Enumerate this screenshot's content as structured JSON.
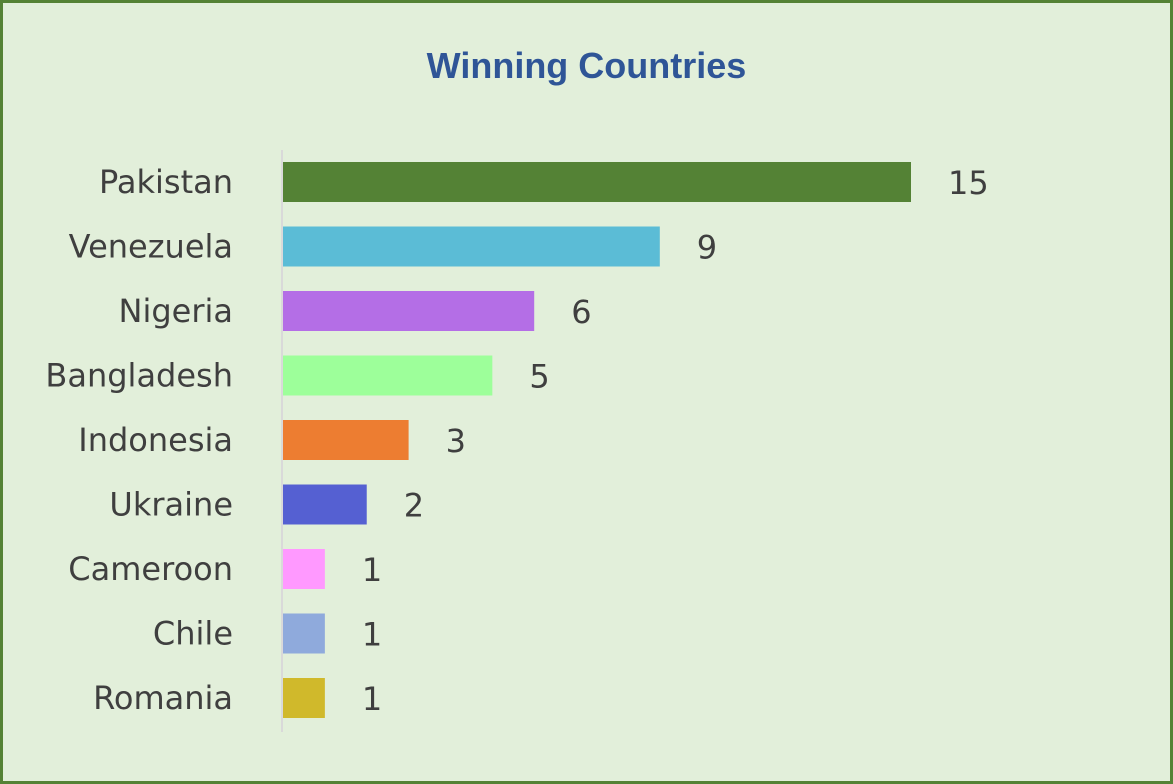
{
  "chart_data": {
    "type": "bar",
    "orientation": "horizontal",
    "title": "Winning Countries",
    "xlabel": "",
    "ylabel": "",
    "categories": [
      "Pakistan",
      "Venezuela",
      "Nigeria",
      "Bangladesh",
      "Indonesia",
      "Ukraine",
      "Cameroon",
      "Chile",
      "Romania"
    ],
    "values": [
      15,
      9,
      6,
      5,
      3,
      2,
      1,
      1,
      1
    ],
    "colors": [
      "#548235",
      "#5bbcd6",
      "#b46ee6",
      "#9dff9a",
      "#ed7d31",
      "#5560d2",
      "#ff99ff",
      "#8faadc",
      "#d0b92b"
    ],
    "xlim": [
      0,
      15
    ],
    "grid": false,
    "legend": "none",
    "data_labels": true
  },
  "colors": {
    "background": "#e2efda",
    "border": "#548235",
    "title": "#2f5597",
    "text": "#3f3f3f",
    "axis": "#d9d9d9"
  }
}
